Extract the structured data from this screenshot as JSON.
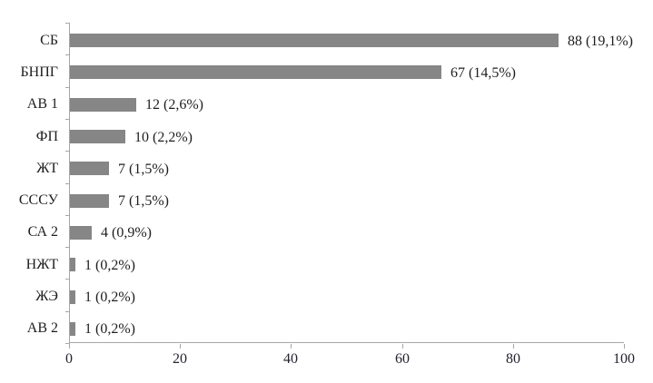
{
  "chart_data": {
    "type": "bar",
    "orientation": "horizontal",
    "title": "",
    "xlabel": "",
    "ylabel": "",
    "categories": [
      "СБ",
      "БНПГ",
      "АВ 1",
      "ФП",
      "ЖТ",
      "СССУ",
      "СА 2",
      "НЖТ",
      "ЖЭ",
      "АВ 2"
    ],
    "values": [
      88,
      67,
      12,
      10,
      7,
      7,
      4,
      1,
      1,
      1
    ],
    "data_labels": [
      "88 (19,1%)",
      "67 (14,5%)",
      "12 (2,6%)",
      "10 (2,2%)",
      "7 (1,5%)",
      "7 (1,5%)",
      "4 (0,9%)",
      "1 (0,2%)",
      "1 (0,2%)",
      "1 (0,2%)"
    ],
    "xlim": [
      0,
      100
    ],
    "x_ticks": [
      "0",
      "20",
      "40",
      "60",
      "80",
      "100"
    ],
    "grid": false,
    "legend": false,
    "colors": {
      "bar": "#868686",
      "axis": "#a6a6a6",
      "label_text": "#1e1e22",
      "tick_text": "#23232f",
      "background": "#ffffff"
    }
  }
}
